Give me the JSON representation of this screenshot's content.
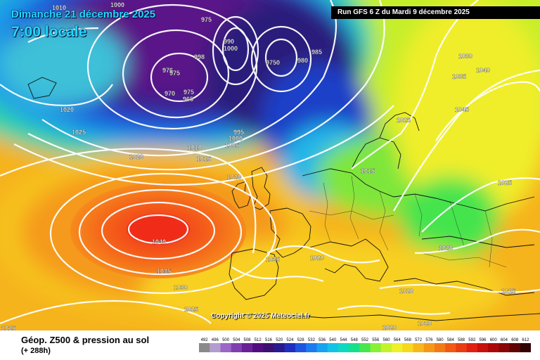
{
  "header": {
    "date_title": "Dimanche 21 décembre 2025",
    "time_title": "7:00 locale",
    "run_info": "Run GFS 6 Z du Mardi 9 décembre 2025"
  },
  "copyright": "Copyright © 2025 Meteociel.fr",
  "footer": {
    "product": "Géop. Z500 & pression au sol",
    "lead": "(+ 288h)"
  },
  "legend": {
    "values": [
      "492",
      "496",
      "500",
      "504",
      "508",
      "512",
      "516",
      "520",
      "524",
      "528",
      "532",
      "536",
      "540",
      "544",
      "548",
      "552",
      "556",
      "560",
      "564",
      "568",
      "572",
      "576",
      "580",
      "584",
      "588",
      "592",
      "596",
      "600",
      "604",
      "608",
      "612"
    ],
    "colors": [
      "#8a8a8a",
      "#b39ccf",
      "#9b66c6",
      "#7f3fb0",
      "#6a2098",
      "#520c80",
      "#3c1070",
      "#2a1a90",
      "#1f2fc0",
      "#1f55e0",
      "#1d7bf0",
      "#17a2f2",
      "#12c3e6",
      "#0fd8c0",
      "#14e08a",
      "#46e64e",
      "#8af036",
      "#c4f22a",
      "#eef028",
      "#f8d81e",
      "#f6b81a",
      "#f59818",
      "#f37a16",
      "#f05a14",
      "#ea3c12",
      "#e02010",
      "#c8100c",
      "#aa0808",
      "#8a0606",
      "#600404",
      "#300202"
    ]
  },
  "map": {
    "isobar_labels": [
      {
        "text": "975"
      },
      {
        "text": "990"
      },
      {
        "text": "1000"
      },
      {
        "text": "985"
      },
      {
        "text": "980"
      },
      {
        "text": "9750"
      },
      {
        "text": "998"
      },
      {
        "text": "976"
      },
      {
        "text": "975"
      },
      {
        "text": "970"
      },
      {
        "text": "975"
      },
      {
        "text": "965"
      },
      {
        "text": "1000"
      },
      {
        "text": "1010"
      },
      {
        "text": "1020"
      },
      {
        "text": "1025"
      },
      {
        "text": "1010"
      },
      {
        "text": "1020"
      },
      {
        "text": "1015"
      },
      {
        "text": "995"
      },
      {
        "text": "1000"
      },
      {
        "text": "1005"
      },
      {
        "text": "1020"
      },
      {
        "text": "1015"
      },
      {
        "text": "1025"
      },
      {
        "text": "1030"
      },
      {
        "text": "1035"
      },
      {
        "text": "1040"
      },
      {
        "text": "1045"
      },
      {
        "text": "1025"
      },
      {
        "text": "1040"
      },
      {
        "text": "1035"
      },
      {
        "text": "1030"
      },
      {
        "text": "1025"
      },
      {
        "text": "1035"
      },
      {
        "text": "1020"
      },
      {
        "text": "1020"
      },
      {
        "text": "1020"
      },
      {
        "text": "1015"
      },
      {
        "text": "1020"
      },
      {
        "text": "1020"
      },
      {
        "text": "1015"
      }
    ]
  }
}
